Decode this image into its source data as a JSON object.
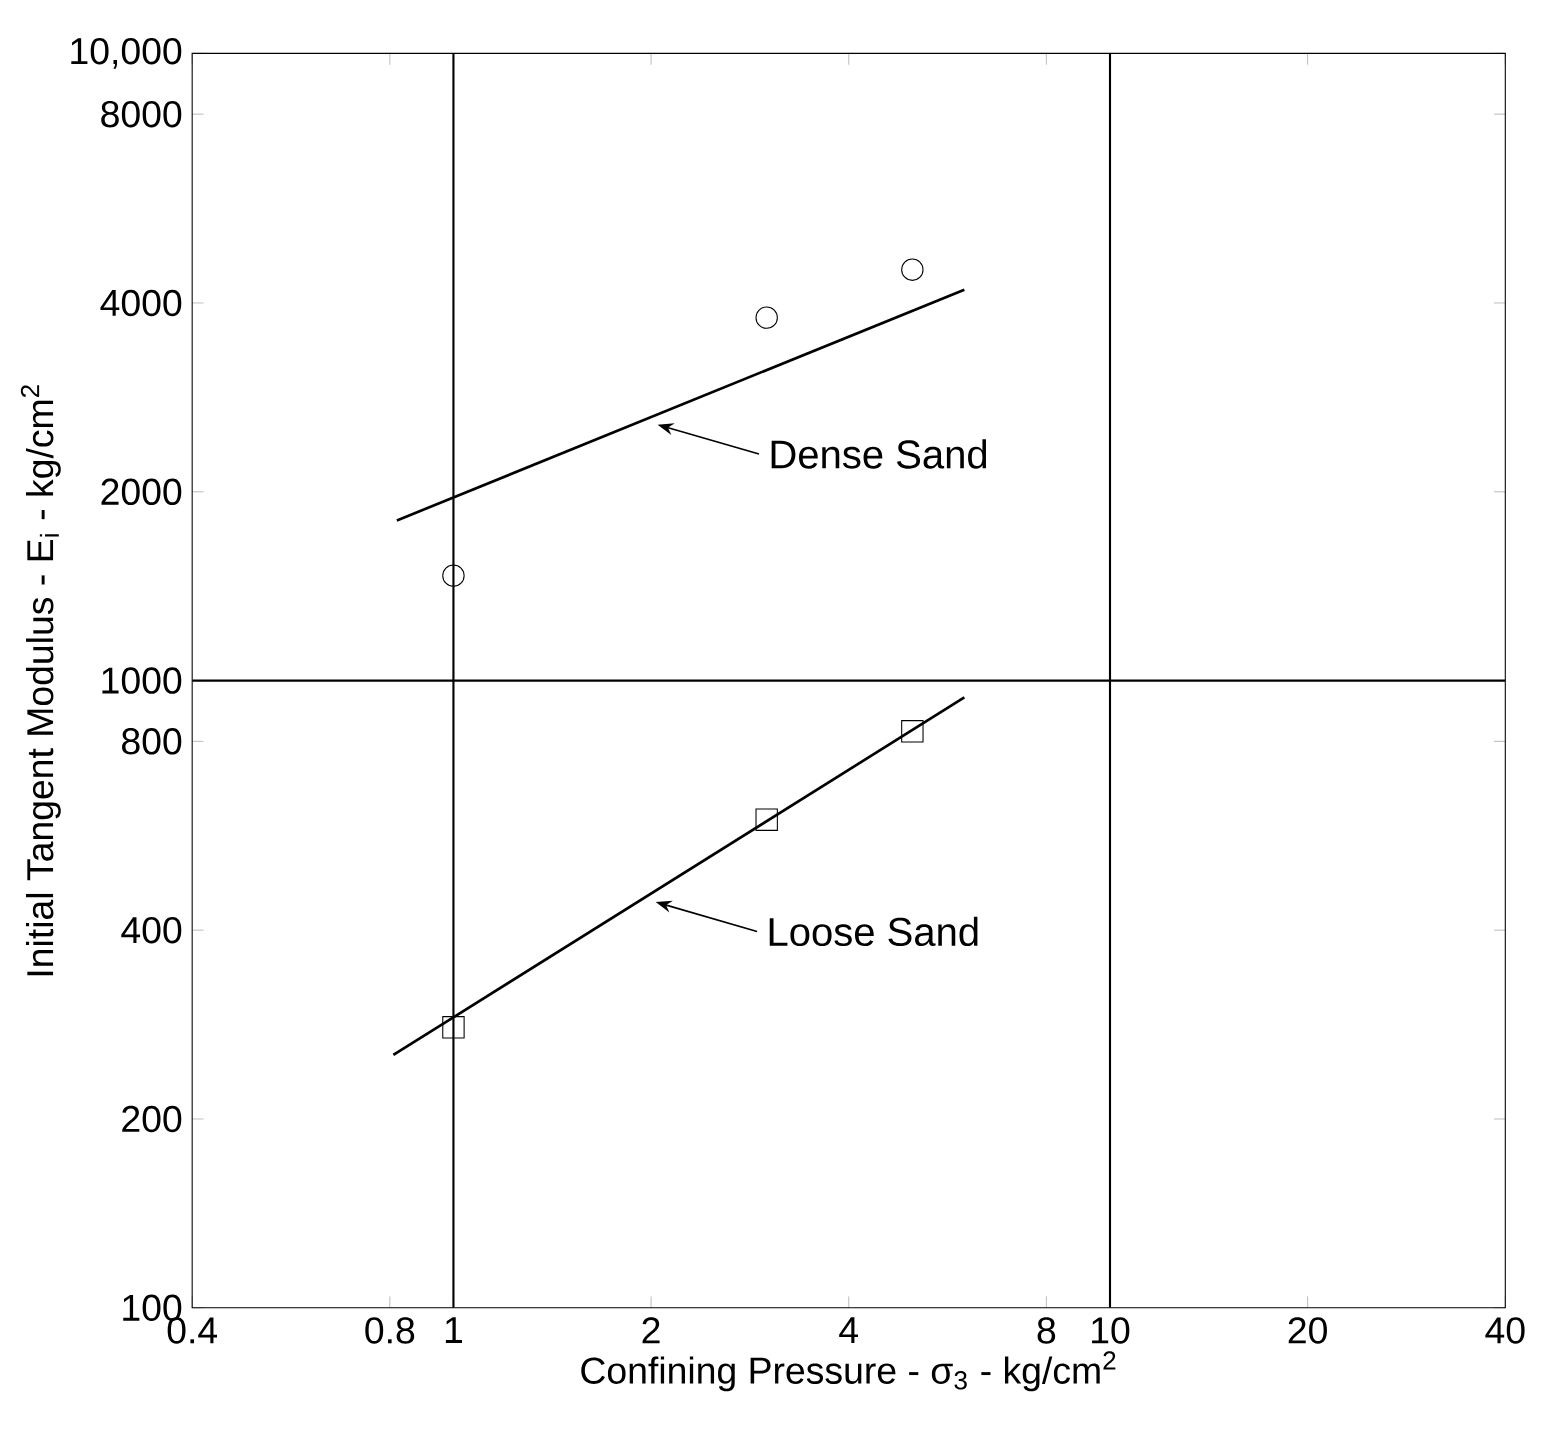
{
  "chart_data": {
    "type": "scatter",
    "xlabel": "Confining Pressure - σ$_{3}$ - kg/cm$^{2}$",
    "ylabel": "Initial Tangent Modulus - E$_{i}$ - kg/cm$^{2}$",
    "log": "xy",
    "xlim": [
      0.4,
      40
    ],
    "ylim": [
      100,
      10000
    ],
    "xticks": [
      0.4,
      0.8,
      1,
      2,
      4,
      8,
      10,
      20,
      40
    ],
    "yticks": [
      100,
      200,
      400,
      800,
      1000,
      2000,
      4000,
      8000,
      {
        "value": 10000,
        "label": "10,000"
      }
    ],
    "grid": false,
    "series": [
      {
        "marker": "circle",
        "color": "#000000",
        "x": [
          1,
          3,
          5
        ],
        "values": [
          1470,
          3790,
          4520
        ]
      },
      {
        "marker": "square",
        "color": "#000000",
        "x": [
          1,
          3,
          5
        ],
        "values": [
          280,
          600,
          830
        ]
      },
      {
        "type": "line",
        "marker": "none",
        "color": "#000000",
        "x": [
          0.82,
          6
        ],
        "values": [
          1800,
          4200
        ]
      },
      {
        "type": "line",
        "marker": "none",
        "color": "#000000",
        "x": [
          0.81,
          6
        ],
        "values": [
          253,
          940
        ]
      }
    ],
    "ref_lines": [
      {
        "axis": "x",
        "value": 1
      },
      {
        "axis": "x",
        "value": 10
      },
      {
        "axis": "y",
        "value": 1000
      }
    ],
    "annotations": [
      "Dense Sand",
      "Loose Sand"
    ]
  }
}
